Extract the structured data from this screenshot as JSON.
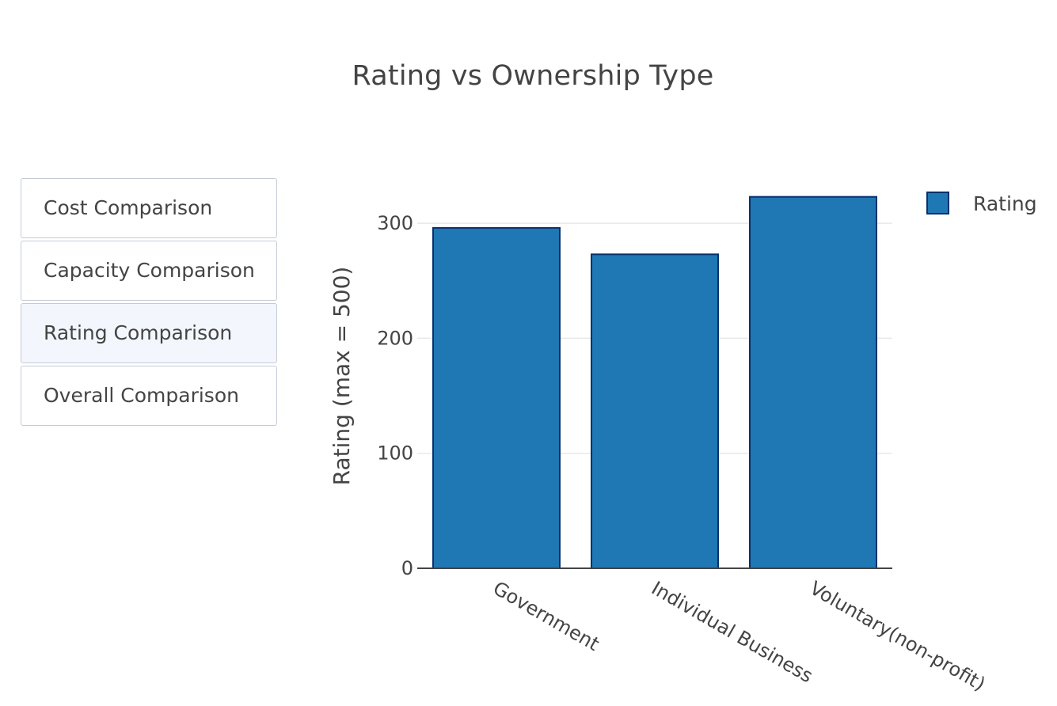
{
  "chart_data": {
    "type": "bar",
    "title": "Rating vs Ownership Type",
    "categories": [
      "Government",
      "Individual Business",
      "Voluntary(non-profit)"
    ],
    "series": [
      {
        "name": "Rating",
        "values": [
          296,
          273,
          323
        ],
        "color": "#1f77b4",
        "edge_color": "#08306b"
      }
    ],
    "xlabel": "",
    "ylabel": "Rating (max = 500)",
    "ylim": [
      0,
      330
    ],
    "yticks": [
      0,
      100,
      200,
      300
    ],
    "ytick_labels": [
      "0",
      "100",
      "200",
      "300"
    ],
    "grid": true,
    "legend_position": "top-right"
  },
  "buttons": [
    {
      "label": "Cost Comparison",
      "active": false
    },
    {
      "label": "Capacity Comparison",
      "active": false
    },
    {
      "label": "Rating Comparison",
      "active": true
    },
    {
      "label": "Overall Comparison",
      "active": false
    }
  ]
}
